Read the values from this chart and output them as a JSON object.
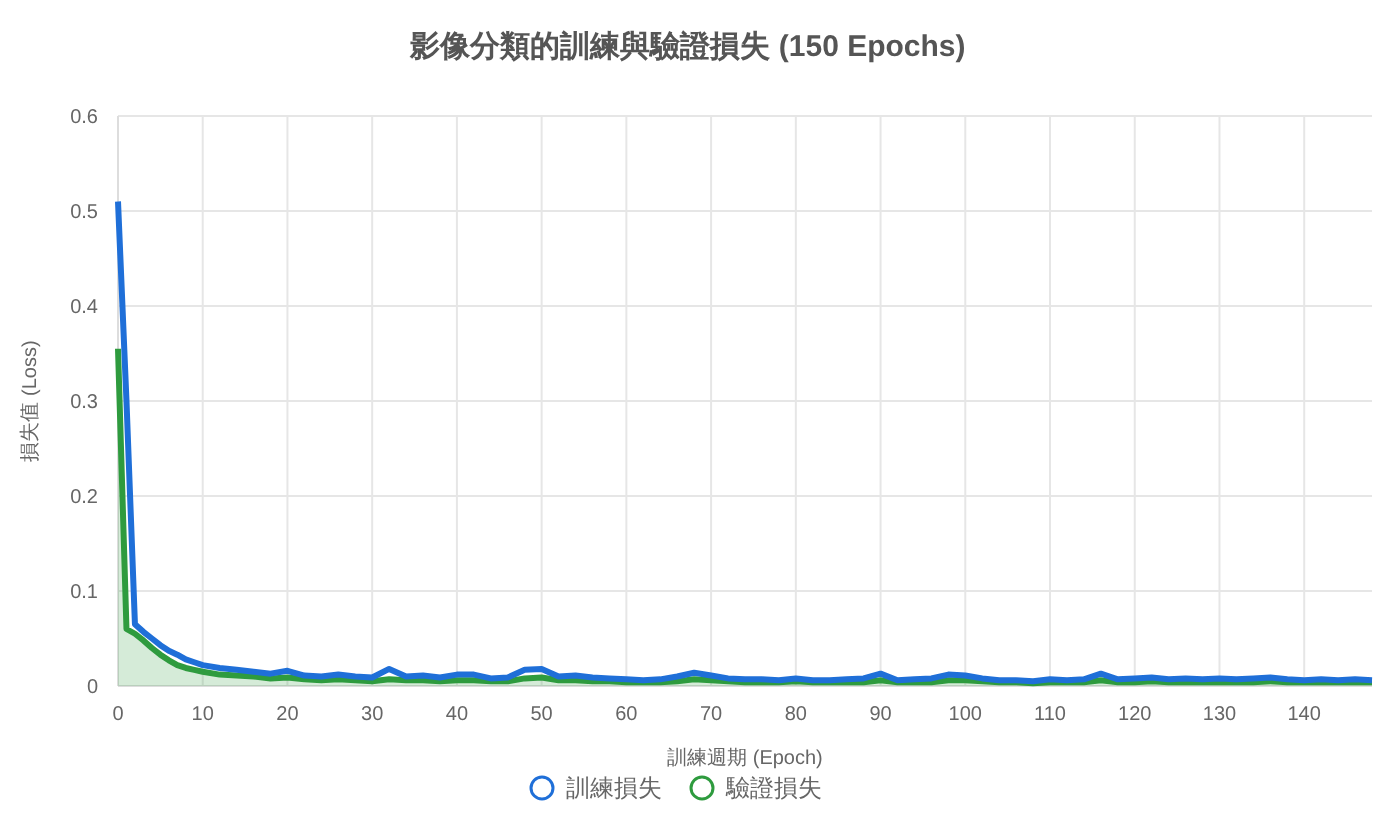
{
  "chart_data": {
    "type": "line",
    "title": "影像分類的訓練與驗證損失 (150 Epochs)",
    "xlabel": "訓練週期 (Epoch)",
    "ylabel": "損失值 (Loss)",
    "x": [
      0,
      1,
      2,
      3,
      4,
      5,
      6,
      7,
      8,
      9,
      10,
      12,
      14,
      16,
      18,
      20,
      22,
      24,
      26,
      28,
      30,
      32,
      34,
      36,
      38,
      40,
      42,
      44,
      46,
      48,
      50,
      52,
      54,
      56,
      58,
      60,
      62,
      64,
      66,
      68,
      70,
      72,
      74,
      76,
      78,
      80,
      82,
      84,
      86,
      88,
      90,
      92,
      94,
      96,
      98,
      100,
      102,
      104,
      106,
      108,
      110,
      112,
      114,
      116,
      118,
      120,
      122,
      124,
      126,
      128,
      130,
      132,
      134,
      136,
      138,
      140,
      142,
      144,
      146,
      148
    ],
    "series": [
      {
        "name": "訓練損失",
        "color": "#1f6fd8",
        "values": [
          0.51,
          0.3,
          0.065,
          0.057,
          0.05,
          0.043,
          0.037,
          0.033,
          0.028,
          0.025,
          0.022,
          0.019,
          0.017,
          0.015,
          0.013,
          0.016,
          0.011,
          0.01,
          0.012,
          0.01,
          0.009,
          0.018,
          0.01,
          0.011,
          0.009,
          0.012,
          0.012,
          0.008,
          0.009,
          0.017,
          0.018,
          0.01,
          0.011,
          0.009,
          0.008,
          0.007,
          0.006,
          0.007,
          0.01,
          0.014,
          0.011,
          0.008,
          0.007,
          0.007,
          0.006,
          0.008,
          0.006,
          0.006,
          0.007,
          0.008,
          0.013,
          0.006,
          0.007,
          0.008,
          0.012,
          0.011,
          0.008,
          0.006,
          0.006,
          0.005,
          0.007,
          0.006,
          0.007,
          0.013,
          0.007,
          0.008,
          0.009,
          0.007,
          0.008,
          0.007,
          0.008,
          0.007,
          0.008,
          0.009,
          0.007,
          0.006,
          0.007,
          0.006,
          0.007,
          0.006
        ]
      },
      {
        "name": "驗證損失",
        "color": "#2e9b3e",
        "type": "area",
        "values": [
          0.355,
          0.06,
          0.055,
          0.048,
          0.04,
          0.033,
          0.027,
          0.022,
          0.019,
          0.017,
          0.015,
          0.012,
          0.011,
          0.01,
          0.008,
          0.009,
          0.007,
          0.006,
          0.007,
          0.006,
          0.005,
          0.007,
          0.006,
          0.006,
          0.005,
          0.006,
          0.006,
          0.005,
          0.005,
          0.008,
          0.009,
          0.006,
          0.006,
          0.005,
          0.005,
          0.004,
          0.004,
          0.004,
          0.005,
          0.007,
          0.006,
          0.005,
          0.004,
          0.004,
          0.004,
          0.005,
          0.004,
          0.004,
          0.004,
          0.004,
          0.006,
          0.004,
          0.004,
          0.004,
          0.006,
          0.006,
          0.005,
          0.004,
          0.004,
          0.003,
          0.004,
          0.004,
          0.004,
          0.006,
          0.004,
          0.004,
          0.005,
          0.004,
          0.004,
          0.004,
          0.004,
          0.004,
          0.004,
          0.005,
          0.004,
          0.004,
          0.004,
          0.004,
          0.004,
          0.004
        ]
      }
    ],
    "xlim": [
      0,
      148
    ],
    "xticks": [
      0,
      10,
      20,
      30,
      40,
      50,
      60,
      70,
      80,
      90,
      100,
      110,
      120,
      130,
      140
    ],
    "ylim": [
      0,
      0.6
    ],
    "yticks": [
      0,
      0.1,
      0.2,
      0.3,
      0.4,
      0.5,
      0.6
    ],
    "grid": true,
    "legend": "bottom",
    "marker": "none",
    "line_style": "solid"
  }
}
